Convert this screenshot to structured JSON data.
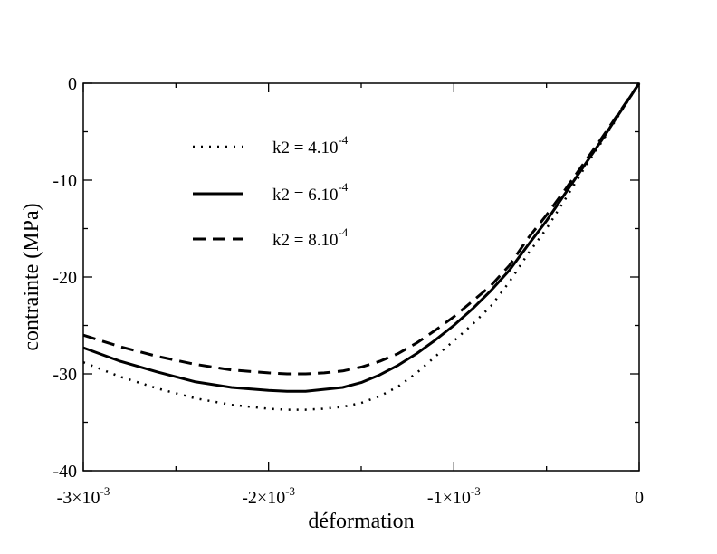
{
  "chart_data": {
    "type": "line",
    "title": "",
    "xlabel": "déformation",
    "ylabel": "contrainte (MPa)",
    "xlim": [
      -0.003,
      0
    ],
    "ylim": [
      -40,
      0
    ],
    "x_ticks": [
      {
        "value": -0.003,
        "mantissa": "-3×10",
        "exponent": "-3"
      },
      {
        "value": -0.002,
        "mantissa": "-2×10",
        "exponent": "-3"
      },
      {
        "value": -0.001,
        "mantissa": "-1×10",
        "exponent": "-3"
      },
      {
        "value": 0,
        "mantissa": "0",
        "exponent": ""
      }
    ],
    "y_ticks": [
      {
        "value": 0,
        "label": "0"
      },
      {
        "value": -10,
        "label": "-10"
      },
      {
        "value": -20,
        "label": "-20"
      },
      {
        "value": -30,
        "label": "-30"
      },
      {
        "value": -40,
        "label": "-40"
      }
    ],
    "legend_position": "top-left",
    "series": [
      {
        "name": "k2 = 4.10-4",
        "legend_base": "k2 = 4.10",
        "legend_exp": "-4",
        "style": "dotted",
        "color": "#000000",
        "x": [
          -0.003,
          -0.0028,
          -0.0026,
          -0.0024,
          -0.0022,
          -0.002,
          -0.0019,
          -0.0018,
          -0.0017,
          -0.0016,
          -0.0015,
          -0.0014,
          -0.0013,
          -0.0012,
          -0.0011,
          -0.001,
          -0.0009,
          -0.0008,
          -0.0007,
          -0.0006,
          -0.0005,
          -0.0004,
          -0.0003,
          -0.0002,
          -0.0001,
          0
        ],
        "values": [
          -28.8,
          -30.3,
          -31.5,
          -32.5,
          -33.2,
          -33.6,
          -33.7,
          -33.7,
          -33.6,
          -33.4,
          -33.0,
          -32.3,
          -31.3,
          -29.9,
          -28.2,
          -26.6,
          -24.9,
          -23.0,
          -20.5,
          -17.6,
          -15.0,
          -12.0,
          -8.9,
          -6.0,
          -3.0,
          0
        ]
      },
      {
        "name": "k2 = 6.10-4",
        "legend_base": "k2 = 6.10",
        "legend_exp": "-4",
        "style": "solid",
        "color": "#000000",
        "x": [
          -0.003,
          -0.0028,
          -0.0026,
          -0.0024,
          -0.0022,
          -0.002,
          -0.0019,
          -0.0018,
          -0.0017,
          -0.0016,
          -0.0015,
          -0.0014,
          -0.0013,
          -0.0012,
          -0.0011,
          -0.001,
          -0.0009,
          -0.0008,
          -0.0007,
          -0.0006,
          -0.0005,
          -0.0004,
          -0.0003,
          -0.0002,
          -0.0001,
          0
        ],
        "values": [
          -27.3,
          -28.7,
          -29.8,
          -30.8,
          -31.4,
          -31.7,
          -31.8,
          -31.8,
          -31.6,
          -31.4,
          -30.9,
          -30.1,
          -29.1,
          -27.9,
          -26.5,
          -25.0,
          -23.3,
          -21.4,
          -19.3,
          -16.7,
          -14.2,
          -11.4,
          -8.6,
          -5.8,
          -2.9,
          0
        ]
      },
      {
        "name": "k2 = 8.10-4",
        "legend_base": "k2 = 8.10",
        "legend_exp": "-4",
        "style": "dashed",
        "color": "#000000",
        "x": [
          -0.003,
          -0.0028,
          -0.0026,
          -0.0024,
          -0.0022,
          -0.002,
          -0.0019,
          -0.0018,
          -0.0017,
          -0.0016,
          -0.0015,
          -0.0014,
          -0.0013,
          -0.0012,
          -0.0011,
          -0.001,
          -0.0009,
          -0.0008,
          -0.0007,
          -0.0006,
          -0.0005,
          -0.0004,
          -0.0003,
          -0.0002,
          -0.0001,
          0
        ],
        "values": [
          -26.0,
          -27.2,
          -28.2,
          -29.0,
          -29.6,
          -29.9,
          -30.0,
          -30.0,
          -29.9,
          -29.7,
          -29.3,
          -28.7,
          -27.9,
          -26.8,
          -25.5,
          -24.1,
          -22.5,
          -20.9,
          -18.8,
          -16.0,
          -13.6,
          -11.0,
          -8.3,
          -5.6,
          -2.8,
          0
        ]
      }
    ]
  }
}
